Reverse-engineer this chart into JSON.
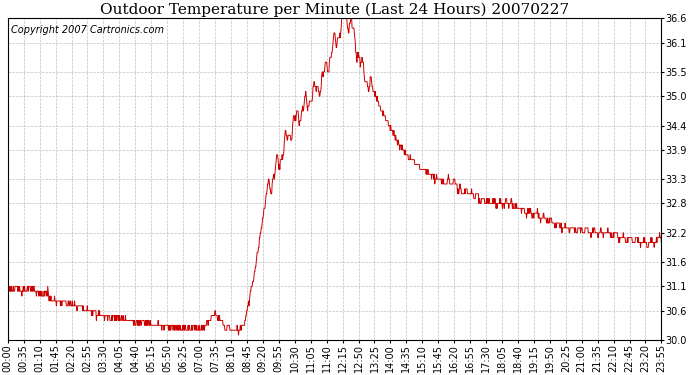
{
  "title": "Outdoor Temperature per Minute (Last 24 Hours) 20070227",
  "copyright_text": "Copyright 2007 Cartronics.com",
  "line_color": "#cc0000",
  "bg_color": "#ffffff",
  "plot_bg_color": "#ffffff",
  "grid_color": "#b0b0b0",
  "ylim": [
    30.0,
    36.6
  ],
  "yticks": [
    30.0,
    30.6,
    31.1,
    31.6,
    32.2,
    32.8,
    33.3,
    33.9,
    34.4,
    35.0,
    35.5,
    36.1,
    36.6
  ],
  "title_fontsize": 11,
  "tick_fontsize": 7,
  "copyright_fontsize": 7,
  "x_tick_labels": [
    "00:00",
    "00:35",
    "01:10",
    "01:45",
    "02:20",
    "02:55",
    "03:30",
    "04:05",
    "04:40",
    "05:15",
    "05:50",
    "06:25",
    "07:00",
    "07:35",
    "08:10",
    "08:45",
    "09:20",
    "09:55",
    "10:30",
    "11:05",
    "11:40",
    "12:15",
    "12:50",
    "13:25",
    "14:00",
    "14:35",
    "15:10",
    "15:45",
    "16:20",
    "16:55",
    "17:30",
    "18:05",
    "18:40",
    "19:15",
    "19:50",
    "20:25",
    "21:00",
    "21:35",
    "22:10",
    "22:45",
    "23:20",
    "23:55"
  ],
  "num_minutes": 1440
}
